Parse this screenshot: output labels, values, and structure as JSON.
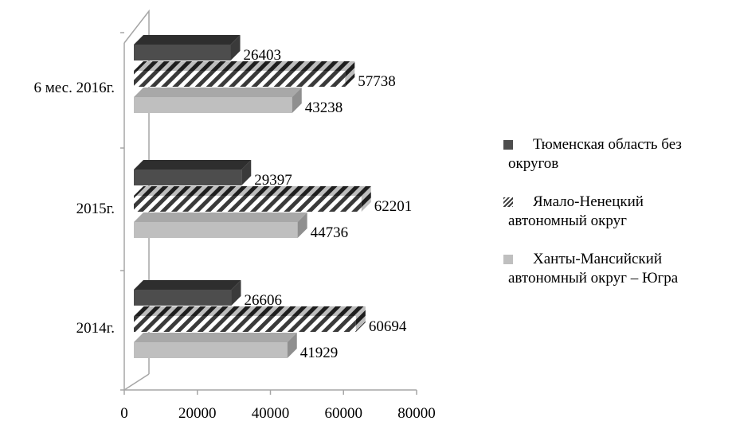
{
  "chart_data": {
    "type": "bar",
    "orientation": "horizontal",
    "style": "3d",
    "categories": [
      "2014г.",
      "2015г.",
      "6 мес. 2016г."
    ],
    "series": [
      {
        "name": "Тюменская область без округов",
        "values": [
          26606,
          29397,
          26403
        ],
        "color": "#4d4d4d",
        "pattern": "solid"
      },
      {
        "name": "Ямало-Ненецкий автономный округ",
        "values": [
          60694,
          62201,
          57738
        ],
        "color": "#3a3a3a",
        "pattern": "diagonal-stripes"
      },
      {
        "name": "Ханты-Мансийский автономный округ – Югра",
        "values": [
          41929,
          44736,
          43238
        ],
        "color": "#bfbfbf",
        "pattern": "solid"
      }
    ],
    "xlim": [
      0,
      80000
    ],
    "xticks": [
      "0",
      "20000",
      "40000",
      "60000",
      "80000"
    ],
    "grid": false,
    "legend_position": "right"
  },
  "legend": {
    "items": [
      {
        "line1": "Тюменская область без",
        "line2": "округов"
      },
      {
        "line1": "Ямало-Ненецкий",
        "line2": "автономный округ"
      },
      {
        "line1": "Ханты-Мансийский",
        "line2": "автономный округ – Югра"
      }
    ]
  }
}
